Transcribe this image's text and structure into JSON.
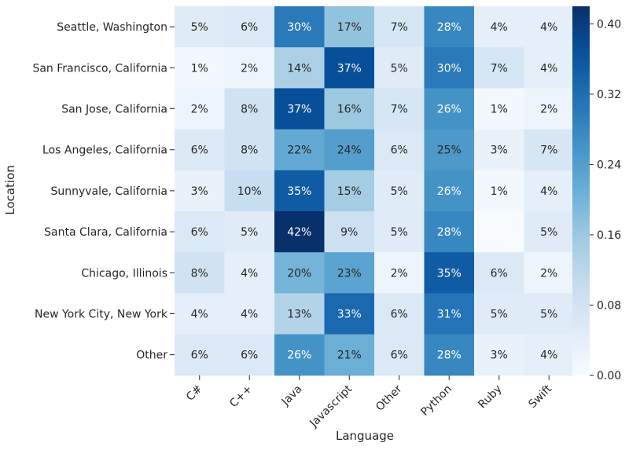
{
  "chart_data": {
    "type": "heatmap",
    "xlabel": "Language",
    "ylabel": "Location",
    "x_categories": [
      "C#",
      "C++",
      "Java",
      "Javascript",
      "Other",
      "Python",
      "Ruby",
      "Swift"
    ],
    "y_categories": [
      "Seattle, Washington",
      "San Francisco, California",
      "San Jose, California",
      "Los Angeles, California",
      "Sunnyvale, California",
      "Santa Clara, California",
      "Chicago, Illinois",
      "New York City, New York",
      "Other"
    ],
    "values": [
      [
        0.05,
        0.06,
        0.3,
        0.17,
        0.07,
        0.28,
        0.04,
        0.04
      ],
      [
        0.01,
        0.02,
        0.14,
        0.37,
        0.05,
        0.3,
        0.07,
        0.04
      ],
      [
        0.02,
        0.08,
        0.37,
        0.16,
        0.07,
        0.26,
        0.01,
        0.02
      ],
      [
        0.06,
        0.08,
        0.22,
        0.24,
        0.06,
        0.25,
        0.03,
        0.07
      ],
      [
        0.03,
        0.1,
        0.35,
        0.15,
        0.05,
        0.26,
        0.01,
        0.04
      ],
      [
        0.06,
        0.05,
        0.42,
        0.09,
        0.05,
        0.28,
        0.0,
        0.05
      ],
      [
        0.08,
        0.04,
        0.2,
        0.23,
        0.02,
        0.35,
        0.06,
        0.02
      ],
      [
        0.04,
        0.04,
        0.13,
        0.33,
        0.06,
        0.31,
        0.05,
        0.05
      ],
      [
        0.06,
        0.06,
        0.26,
        0.21,
        0.06,
        0.28,
        0.03,
        0.04
      ]
    ],
    "cell_labels": [
      [
        "5%",
        "6%",
        "30%",
        "17%",
        "7%",
        "28%",
        "4%",
        "4%"
      ],
      [
        "1%",
        "2%",
        "14%",
        "37%",
        "5%",
        "30%",
        "7%",
        "4%"
      ],
      [
        "2%",
        "8%",
        "37%",
        "16%",
        "7%",
        "26%",
        "1%",
        "2%"
      ],
      [
        "6%",
        "8%",
        "22%",
        "24%",
        "6%",
        "25%",
        "3%",
        "7%"
      ],
      [
        "3%",
        "10%",
        "35%",
        "15%",
        "5%",
        "26%",
        "1%",
        "4%"
      ],
      [
        "6%",
        "5%",
        "42%",
        "9%",
        "5%",
        "28%",
        "",
        "5%"
      ],
      [
        "8%",
        "4%",
        "20%",
        "23%",
        "2%",
        "35%",
        "6%",
        "2%"
      ],
      [
        "4%",
        "4%",
        "13%",
        "33%",
        "6%",
        "31%",
        "5%",
        "5%"
      ],
      [
        "6%",
        "6%",
        "26%",
        "21%",
        "6%",
        "28%",
        "3%",
        "4%"
      ]
    ],
    "colorscale": "Blues",
    "colorbar": {
      "range": [
        0,
        0.42
      ],
      "ticks": [
        0.0,
        0.08,
        0.16,
        0.24,
        0.32,
        0.4
      ],
      "tick_labels": [
        "0.00",
        "0.08",
        "0.16",
        "0.24",
        "0.32",
        "0.40"
      ]
    }
  }
}
